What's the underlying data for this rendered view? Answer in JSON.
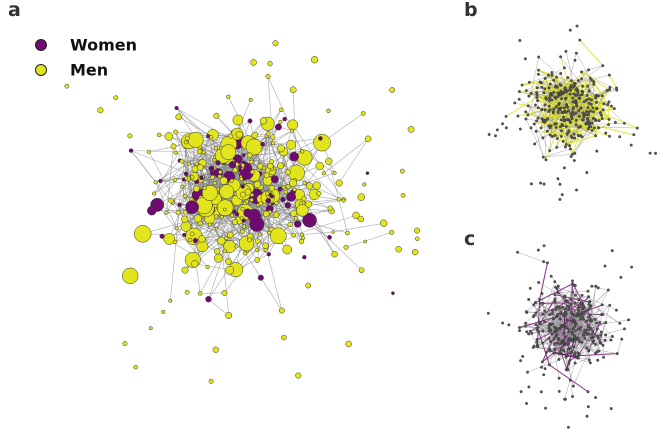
{
  "panels": {
    "a": "a",
    "b": "b",
    "c": "c"
  },
  "legend": [
    {
      "label": "Women",
      "color": "#6e0a72"
    },
    {
      "label": "Men",
      "color": "#e2e41c"
    }
  ]
}
